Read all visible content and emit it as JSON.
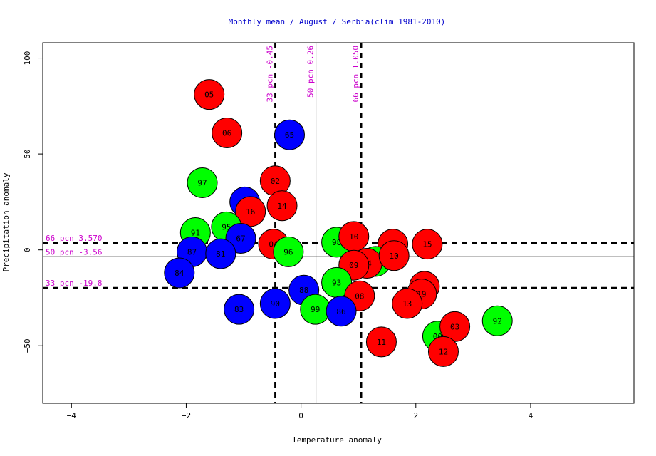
{
  "chart_data": {
    "type": "scatter",
    "title": "Monthly mean / August / Serbia(clim 1981-2010)",
    "xlabel": "Temperature anomaly",
    "ylabel": "Precipitation anomaly",
    "xlim": [
      -4.5,
      5.8
    ],
    "ylim": [
      -80,
      108
    ],
    "xticks": [
      -4,
      -2,
      0,
      2,
      4
    ],
    "yticks": [
      -50,
      0,
      50,
      100
    ],
    "grid": false,
    "legend": "none",
    "colors": {
      "blue": "#0000ff",
      "green": "#00ff00",
      "red": "#ff0000",
      "refText": "#cc00cc",
      "title": "#0000cc"
    },
    "vlines": [
      {
        "x": -0.45,
        "label": "33 pcn -0.45",
        "style": "dashed"
      },
      {
        "x": 0.26,
        "label": "50 pcn 0.26",
        "style": "solid"
      },
      {
        "x": 1.05,
        "label": "66 pcn 1.050",
        "style": "dashed"
      }
    ],
    "hlines": [
      {
        "y": 3.57,
        "label": "66 pcn 3.570",
        "style": "dashed"
      },
      {
        "y": -3.56,
        "label": "50 pcn -3.56",
        "style": "solid"
      },
      {
        "y": -19.8,
        "label": "33 pcn -19.8",
        "style": "dashed"
      }
    ],
    "points": [
      {
        "label": "05",
        "x": -1.6,
        "y": 81,
        "color": "red"
      },
      {
        "label": "06",
        "x": -1.29,
        "y": 61,
        "color": "red"
      },
      {
        "label": "65",
        "x": -0.2,
        "y": 60,
        "color": "blue"
      },
      {
        "label": "97",
        "x": -1.72,
        "y": 35,
        "color": "green"
      },
      {
        "label": "02",
        "x": -0.45,
        "y": 36,
        "color": "red"
      },
      {
        "label": "89",
        "x": -0.98,
        "y": 25,
        "color": "blue"
      },
      {
        "label": "16",
        "x": -0.88,
        "y": 20,
        "color": "red"
      },
      {
        "label": "14",
        "x": -0.33,
        "y": 23,
        "color": "red"
      },
      {
        "label": "91",
        "x": -1.84,
        "y": 9,
        "color": "green"
      },
      {
        "label": "95",
        "x": -1.3,
        "y": 12,
        "color": "green"
      },
      {
        "label": "67",
        "x": -1.05,
        "y": 6,
        "color": "blue"
      },
      {
        "label": "87",
        "x": -1.9,
        "y": -1,
        "color": "blue"
      },
      {
        "label": "81",
        "x": -1.4,
        "y": -2,
        "color": "blue"
      },
      {
        "label": "04",
        "x": -0.48,
        "y": 3,
        "color": "red"
      },
      {
        "label": "96",
        "x": -0.22,
        "y": -1,
        "color": "green"
      },
      {
        "label": "84",
        "x": -2.12,
        "y": -12,
        "color": "blue"
      },
      {
        "label": "98",
        "x": 0.62,
        "y": 4,
        "color": "green"
      },
      {
        "label": "10",
        "x": 0.92,
        "y": 7,
        "color": "red"
      },
      {
        "label": "07",
        "x": 1.6,
        "y": 3,
        "color": "red"
      },
      {
        "label": "15",
        "x": 2.2,
        "y": 3,
        "color": "red"
      },
      {
        "label": "01",
        "x": 1.3,
        "y": -6,
        "color": "green"
      },
      {
        "label": "94",
        "x": 1.15,
        "y": -7,
        "color": "red"
      },
      {
        "label": "09",
        "x": 0.92,
        "y": -8,
        "color": "red"
      },
      {
        "label": "10",
        "x": 1.62,
        "y": -3,
        "color": "red"
      },
      {
        "label": "93",
        "x": 0.62,
        "y": -17,
        "color": "green"
      },
      {
        "label": "88",
        "x": 0.05,
        "y": -21,
        "color": "blue"
      },
      {
        "label": "08",
        "x": 1.02,
        "y": -24,
        "color": "red"
      },
      {
        "label": "17",
        "x": 2.15,
        "y": -19,
        "color": "red"
      },
      {
        "label": "19",
        "x": 2.1,
        "y": -23,
        "color": "red"
      },
      {
        "label": "13",
        "x": 1.85,
        "y": -28,
        "color": "red"
      },
      {
        "label": "83",
        "x": -1.08,
        "y": -31,
        "color": "blue"
      },
      {
        "label": "90",
        "x": -0.45,
        "y": -28,
        "color": "blue"
      },
      {
        "label": "99",
        "x": 0.25,
        "y": -31,
        "color": "green"
      },
      {
        "label": "86",
        "x": 0.7,
        "y": -32,
        "color": "blue"
      },
      {
        "label": "92",
        "x": 3.42,
        "y": -37,
        "color": "green"
      },
      {
        "label": "00",
        "x": 2.38,
        "y": -45,
        "color": "green"
      },
      {
        "label": "03",
        "x": 2.68,
        "y": -40,
        "color": "red"
      },
      {
        "label": "12",
        "x": 2.48,
        "y": -53,
        "color": "red"
      },
      {
        "label": "11",
        "x": 1.4,
        "y": -48,
        "color": "red"
      }
    ]
  }
}
